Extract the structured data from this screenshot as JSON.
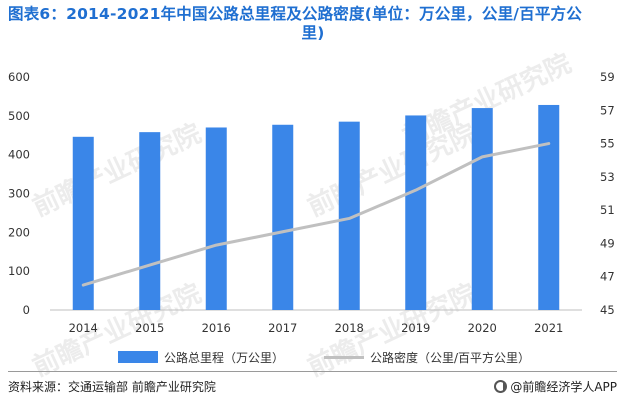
{
  "title": {
    "line1": "图表6：2014-2021年中国公路总里程及公路密度(单位：万公里，公里/百平方公",
    "line2": "里)"
  },
  "watermark": "前瞻产业研究院",
  "chart_data": {
    "type": "bar",
    "categories": [
      "2014",
      "2015",
      "2016",
      "2017",
      "2018",
      "2019",
      "2020",
      "2021"
    ],
    "series": [
      {
        "name": "公路总里程（万公里）",
        "type": "bar",
        "axis": "left",
        "color": "#3a86e8",
        "values": [
          446,
          458,
          470,
          477,
          485,
          501,
          520,
          528
        ]
      },
      {
        "name": "公路密度（公里/百平方公里）",
        "type": "line",
        "axis": "right",
        "color": "#c0c0c0",
        "values": [
          46.5,
          47.7,
          48.9,
          49.7,
          50.5,
          52.2,
          54.2,
          55.0
        ]
      }
    ],
    "y_left": {
      "min": 0,
      "max": 600,
      "ticks": [
        "0",
        "100",
        "200",
        "300",
        "400",
        "500",
        "600"
      ]
    },
    "y_right": {
      "min": 45,
      "max": 59,
      "ticks": [
        "45",
        "47",
        "49",
        "51",
        "53",
        "55",
        "57",
        "59"
      ]
    },
    "grid": false,
    "legend_position": "bottom"
  },
  "legend": {
    "bar_label": "公路总里程（万公里）",
    "line_label": "公路密度（公里/百平方公里）"
  },
  "footer": {
    "source": "资料来源：交通运输部 前瞻产业研究院",
    "brand": "@前瞻经济学人APP"
  }
}
